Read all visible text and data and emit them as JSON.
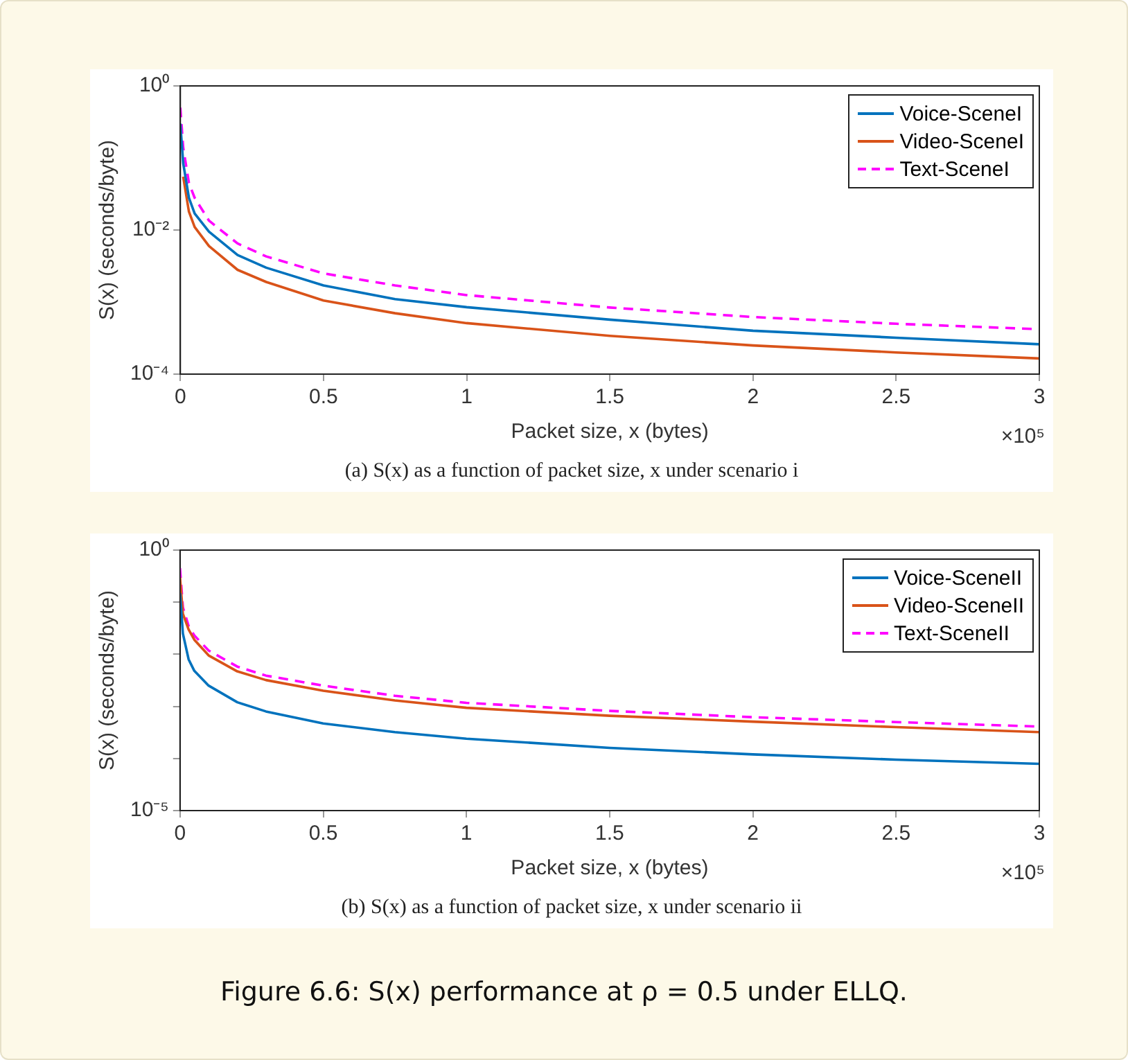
{
  "chart_data": [
    {
      "type": "line",
      "xlabel": "Packet size, x (bytes)",
      "ylabel": "S(x) (seconds/byte)",
      "log": "y",
      "grid": false,
      "legend": "top right",
      "marker": "none",
      "x": [
        0,
        0.01,
        0.03,
        0.05,
        0.1,
        0.2,
        0.3,
        0.5,
        0.75,
        1,
        1.5,
        2,
        2.5,
        3
      ],
      "xlim": [
        0,
        3
      ],
      "xticks": [
        0,
        0.5,
        1,
        1.5,
        2,
        2.5,
        3
      ],
      "ylim": [
        0.0001,
        1
      ],
      "yticks": [
        {
          "value": 0.0001,
          "label": "10⁻⁴"
        },
        {
          "value": 0.01,
          "label": "10⁻²"
        },
        {
          "value": 1,
          "label": "10⁰"
        }
      ],
      "series": [
        {
          "name": "Voice-SceneI",
          "color": "#0072bd",
          "line_style": "solid",
          "values": [
            0.3,
            0.085,
            0.028,
            0.017,
            0.0095,
            0.0045,
            0.003,
            0.0017,
            0.0011,
            0.00085,
            0.00057,
            0.0004,
            0.00032,
            0.00026
          ]
        },
        {
          "name": "Video-SceneI",
          "color": "#d95319",
          "line_style": "solid",
          "values": [
            null,
            0.055,
            0.018,
            0.011,
            0.006,
            0.0028,
            0.0019,
            0.00105,
            0.0007,
            0.00051,
            0.00034,
            0.00025,
            0.0002,
            0.000165
          ]
        },
        {
          "name": "Text-SceneI",
          "color": "#ff00ff",
          "line_style": "dashed",
          "values": [
            0.5,
            0.14,
            0.045,
            0.028,
            0.0135,
            0.0065,
            0.0043,
            0.0025,
            0.0017,
            0.00125,
            0.00084,
            0.00062,
            0.0005,
            0.00042
          ]
        }
      ],
      "annotations": [
        "×10⁵",
        "(a) S(x) as a function of packet size, x under scenario i"
      ]
    },
    {
      "type": "line",
      "xlabel": "Packet size, x (bytes)",
      "ylabel": "S(x) (seconds/byte)",
      "log": "y",
      "grid": false,
      "legend": "top right",
      "marker": "none",
      "x": [
        0,
        0.01,
        0.03,
        0.05,
        0.1,
        0.2,
        0.3,
        0.5,
        0.75,
        1,
        1.5,
        2,
        2.5,
        3
      ],
      "xlim": [
        0,
        3
      ],
      "xticks": [
        0,
        0.5,
        1,
        1.5,
        2,
        2.5,
        3
      ],
      "ylim": [
        1e-05,
        1
      ],
      "yticks": [
        {
          "value": 1e-05,
          "label": "10⁻⁵"
        },
        {
          "value": 0.0001,
          "label": null
        },
        {
          "value": 0.001,
          "label": null
        },
        {
          "value": 0.01,
          "label": null
        },
        {
          "value": 0.1,
          "label": null
        },
        {
          "value": 1,
          "label": "10⁰"
        }
      ],
      "series": [
        {
          "name": "Voice-SceneII",
          "color": "#0072bd",
          "line_style": "solid",
          "values": [
            0.15,
            0.025,
            0.008,
            0.0048,
            0.0025,
            0.0012,
            0.0008,
            0.00047,
            0.00032,
            0.00024,
            0.00016,
            0.00012,
            9.5e-05,
            7.9e-05
          ]
        },
        {
          "name": "Video-SceneII",
          "color": "#d95319",
          "line_style": "solid",
          "values": [
            0.3,
            0.06,
            0.03,
            0.019,
            0.0095,
            0.0047,
            0.0032,
            0.002,
            0.0013,
            0.00094,
            0.00066,
            0.00051,
            0.0004,
            0.00032
          ]
        },
        {
          "name": "Text-SceneII",
          "color": "#ff00ff",
          "line_style": "dashed",
          "values": [
            0.45,
            0.08,
            0.035,
            0.023,
            0.0118,
            0.0058,
            0.0039,
            0.0025,
            0.0016,
            0.00117,
            0.00082,
            0.00062,
            0.0005,
            0.00041
          ]
        }
      ],
      "annotations": [
        "×10⁵",
        "(b) S(x) as a function of packet size, x under scenario ii",
        "Figure 6.6: S(x) performance at ρ = 0.5 under ELLQ."
      ]
    }
  ]
}
